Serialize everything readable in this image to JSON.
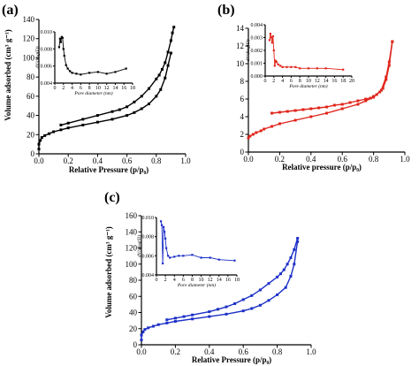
{
  "colors": {
    "a": "#000000",
    "b": "#e0251b",
    "c": "#1c2fc7"
  },
  "chart_data": [
    {
      "panel": "(a)",
      "type": "line",
      "xlabel": "Relative Pressure (p/p₀)",
      "ylabel": "Volume adsorbed (cm³ g⁻¹)",
      "xlim": [
        0.0,
        1.0
      ],
      "ylim": [
        0,
        140
      ],
      "xticks": [
        "0.0",
        "0.2",
        "0.4",
        "0.6",
        "0.8",
        "1.0"
      ],
      "yticks": [
        "0",
        "20",
        "40",
        "60",
        "80",
        "100",
        "120",
        "140"
      ],
      "series": [
        {
          "x": [
            0.0,
            0.0,
            0.01,
            0.02,
            0.04,
            0.07,
            0.1,
            0.15,
            0.2,
            0.3,
            0.4,
            0.5,
            0.6,
            0.65,
            0.7,
            0.75,
            0.8,
            0.83,
            0.86,
            0.88,
            0.9
          ],
          "y": [
            5,
            10,
            14,
            17,
            19,
            21,
            23,
            25,
            27,
            30,
            33,
            36,
            40,
            43,
            47,
            52,
            60,
            67,
            79,
            92,
            105
          ]
        },
        {
          "x": [
            0.92,
            0.91,
            0.9,
            0.88,
            0.86,
            0.84,
            0.82,
            0.8,
            0.75,
            0.7,
            0.65,
            0.6,
            0.55,
            0.5,
            0.4,
            0.3,
            0.2,
            0.15
          ],
          "y": [
            132,
            126,
            118,
            106,
            95,
            88,
            82,
            78,
            68,
            60,
            54,
            49,
            46,
            44,
            40,
            36,
            32,
            30
          ]
        }
      ],
      "inset": {
        "xlabel": "Pore diameter (nm)",
        "ylabel": "dV/dlog(D)",
        "xlim": [
          0,
          18
        ],
        "ylim": [
          0.004,
          0.01
        ],
        "xticks": [
          "0",
          "2",
          "4",
          "6",
          "8",
          "10",
          "12",
          "14",
          "16",
          "18"
        ],
        "yticks": [
          "0.004",
          "0.006",
          "0.008",
          "0.010"
        ],
        "x": [
          1.0,
          1.2,
          1.4,
          1.6,
          1.8,
          2.0,
          2.2,
          2.6,
          3.0,
          3.5,
          4.0,
          5.0,
          6.0,
          8.0,
          10.0,
          12.0,
          14.0,
          16.5
        ],
        "y": [
          0.0082,
          0.0092,
          0.0088,
          0.0094,
          0.0093,
          0.008,
          0.0072,
          0.0061,
          0.0057,
          0.0054,
          0.0052,
          0.0051,
          0.005,
          0.0052,
          0.0053,
          0.0051,
          0.0053,
          0.0057
        ]
      }
    },
    {
      "panel": "(b)",
      "type": "line",
      "xlabel": "Relative pressure (p/p₀)",
      "ylabel": "",
      "xlim": [
        0.0,
        1.0
      ],
      "ylim": [
        0,
        14
      ],
      "xticks": [
        "0.0",
        "0.2",
        "0.4",
        "0.6",
        "0.8",
        "1.0"
      ],
      "yticks": [
        "0",
        "2",
        "4",
        "6",
        "8",
        "10",
        "12",
        "14"
      ],
      "series": [
        {
          "x": [
            0.0,
            0.01,
            0.03,
            0.05,
            0.08,
            0.1,
            0.15,
            0.2,
            0.3,
            0.4,
            0.5,
            0.6,
            0.7,
            0.75,
            0.8,
            0.85,
            0.88,
            0.9,
            0.92
          ],
          "y": [
            1.6,
            1.8,
            2.0,
            2.2,
            2.4,
            2.6,
            2.9,
            3.2,
            3.6,
            4.0,
            4.4,
            4.9,
            5.4,
            5.8,
            6.2,
            7.0,
            8.5,
            10.2,
            12.5
          ]
        },
        {
          "x": [
            0.92,
            0.9,
            0.88,
            0.86,
            0.84,
            0.82,
            0.8,
            0.78,
            0.75,
            0.7,
            0.65,
            0.6,
            0.55,
            0.5,
            0.45,
            0.4,
            0.35,
            0.3,
            0.25,
            0.2,
            0.15
          ],
          "y": [
            12.5,
            9.8,
            8.2,
            7.2,
            6.8,
            6.5,
            6.3,
            6.1,
            6.0,
            5.8,
            5.6,
            5.4,
            5.3,
            5.1,
            5.0,
            4.9,
            4.8,
            4.7,
            4.6,
            4.5,
            4.4
          ]
        }
      ],
      "inset": {
        "xlabel": "Pore diameter (nm)",
        "ylabel": "dV/dlog(D)",
        "xlim": [
          0,
          20
        ],
        "ylim": [
          0.0,
          0.004
        ],
        "xticks": [
          "0",
          "2",
          "4",
          "6",
          "8",
          "10",
          "12",
          "14",
          "16",
          "18",
          "20"
        ],
        "yticks": [
          "0.000",
          "0.001",
          "0.002",
          "0.003",
          "0.004"
        ],
        "x": [
          1.0,
          1.2,
          1.4,
          1.6,
          1.8,
          2.0,
          2.2,
          2.4,
          2.6,
          3.0,
          3.5,
          4.0,
          5.0,
          6.0,
          7.0,
          8.0,
          10.0,
          12.0,
          14.0,
          18.0
        ],
        "y": [
          0.0028,
          0.0033,
          0.003,
          0.0026,
          0.0031,
          0.002,
          0.0008,
          0.0012,
          0.0011,
          0.0009,
          0.0008,
          0.0007,
          0.0007,
          0.0007,
          0.0007,
          0.0006,
          0.0006,
          0.0006,
          0.0006,
          0.0005
        ]
      }
    },
    {
      "panel": "(c)",
      "type": "line",
      "xlabel": "Relative Pressure (p/p₀)",
      "ylabel": "Volume adsorbed (cm³ g⁻¹)",
      "xlim": [
        0.0,
        1.0
      ],
      "ylim": [
        0,
        160
      ],
      "xticks": [
        "0.0",
        "0.2",
        "0.4",
        "0.6",
        "0.8",
        "1.0"
      ],
      "yticks": [
        "0",
        "20",
        "40",
        "60",
        "80",
        "100",
        "120",
        "140",
        "160"
      ],
      "series": [
        {
          "x": [
            0.0,
            0.0,
            0.01,
            0.02,
            0.04,
            0.07,
            0.1,
            0.15,
            0.2,
            0.3,
            0.4,
            0.5,
            0.6,
            0.65,
            0.7,
            0.75,
            0.8,
            0.85,
            0.88,
            0.9,
            0.92
          ],
          "y": [
            6,
            12,
            16,
            19,
            21,
            23,
            25,
            27,
            29,
            32,
            35,
            38,
            42,
            45,
            49,
            55,
            62,
            71,
            85,
            100,
            128
          ]
        },
        {
          "x": [
            0.92,
            0.9,
            0.88,
            0.86,
            0.84,
            0.82,
            0.8,
            0.75,
            0.7,
            0.65,
            0.6,
            0.55,
            0.5,
            0.45,
            0.4,
            0.3,
            0.25,
            0.2,
            0.15
          ],
          "y": [
            132,
            118,
            108,
            100,
            93,
            88,
            84,
            76,
            68,
            61,
            56,
            51,
            47,
            44,
            41,
            37,
            35,
            33,
            31
          ]
        }
      ],
      "inset": {
        "xlabel": "Pore diameter (nm)",
        "ylabel": "dV/dlog(D)",
        "xlim": [
          0,
          18
        ],
        "ylim": [
          0.004,
          0.01
        ],
        "xticks": [
          "0",
          "2",
          "4",
          "6",
          "8",
          "10",
          "12",
          "14",
          "16",
          "18"
        ],
        "yticks": [
          "0.004",
          "0.006",
          "0.008",
          "0.010"
        ],
        "x": [
          1.0,
          1.2,
          1.4,
          1.6,
          1.8,
          2.0,
          2.2,
          2.6,
          3.0,
          4.0,
          5.0,
          6.0,
          8.0,
          10.0,
          12.0,
          14.0,
          17.5
        ],
        "y": [
          0.0096,
          0.0092,
          0.0052,
          0.009,
          0.0085,
          0.0078,
          0.0068,
          0.006,
          0.0058,
          0.0059,
          0.006,
          0.006,
          0.0061,
          0.0058,
          0.0058,
          0.0056,
          0.0055
        ]
      }
    }
  ]
}
